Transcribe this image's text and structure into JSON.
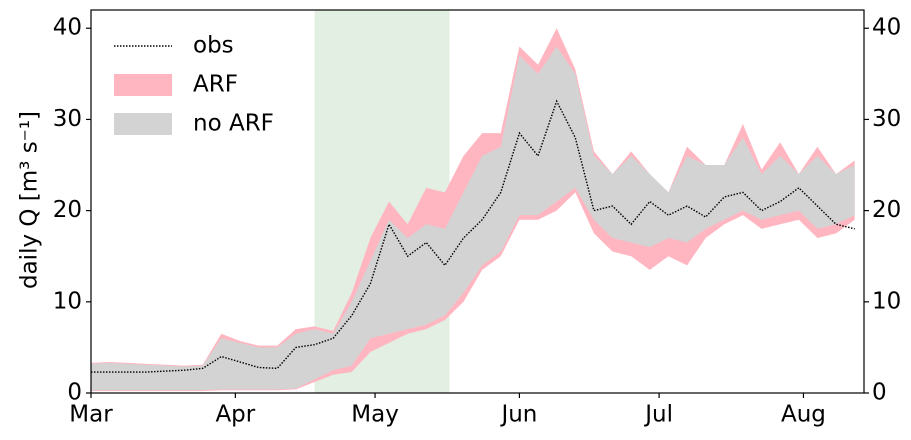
{
  "chart_data": {
    "type": "band-line",
    "ylabel": "daily Q [m³ s⁻¹]",
    "x": [
      0,
      4,
      8,
      12,
      16,
      20,
      24,
      28,
      32,
      36,
      40,
      44,
      48,
      52,
      56,
      60,
      64,
      68,
      72,
      76,
      80,
      84,
      88,
      92,
      96,
      100,
      104,
      108,
      112,
      116,
      120,
      124,
      128,
      132,
      136,
      140,
      144,
      148,
      152,
      156,
      160,
      164
    ],
    "xlim": [
      0,
      166
    ],
    "xticks": [
      {
        "value": 0,
        "label": "Mar"
      },
      {
        "value": 31,
        "label": "Apr"
      },
      {
        "value": 61,
        "label": "May"
      },
      {
        "value": 92,
        "label": "Jun"
      },
      {
        "value": 122,
        "label": "Jul"
      },
      {
        "value": 153,
        "label": "Aug"
      }
    ],
    "ylim": [
      0,
      42
    ],
    "yticks": [
      0,
      10,
      20,
      30,
      40
    ],
    "y2lim": [
      0,
      42
    ],
    "y2ticks": [
      0,
      10,
      20,
      30,
      40
    ],
    "shade": [
      48,
      77
    ],
    "shade_color": "#e3efe3",
    "legend": "upper left",
    "series": [
      {
        "name": "ARF",
        "color": "#ffb6c1",
        "low": [
          0.2,
          0.2,
          0.2,
          0.2,
          0.2,
          0.2,
          0.2,
          0.3,
          0.3,
          0.3,
          0.3,
          0.4,
          1.2,
          2.0,
          2.3,
          4.5,
          5.5,
          6.5,
          7.0,
          8.0,
          10.0,
          13.5,
          15.0,
          19.0,
          19.0,
          20.0,
          22.0,
          17.5,
          15.5,
          15.0,
          13.5,
          15.0,
          14.0,
          17.0,
          18.5,
          19.5,
          18.0,
          18.5,
          19.0,
          17.0,
          17.5,
          19.0
        ],
        "high": [
          3.3,
          3.4,
          3.3,
          3.2,
          3.1,
          3.0,
          3.1,
          6.5,
          5.7,
          5.2,
          5.2,
          7.0,
          7.3,
          6.8,
          11.0,
          17.0,
          21.0,
          18.5,
          22.5,
          22.0,
          26.0,
          28.5,
          28.5,
          38.0,
          36.0,
          40.0,
          35.5,
          26.5,
          24.0,
          26.5,
          24.0,
          22.0,
          27.0,
          25.0,
          25.0,
          29.5,
          24.5,
          27.5,
          24.0,
          27.0,
          24.0,
          25.5
        ]
      },
      {
        "name": "no ARF",
        "color": "#d3d3d3",
        "low": [
          0.3,
          0.3,
          0.3,
          0.3,
          0.3,
          0.3,
          0.3,
          0.4,
          0.4,
          0.4,
          0.4,
          0.5,
          1.5,
          2.5,
          3.0,
          6.0,
          6.5,
          7.0,
          7.5,
          8.5,
          11.0,
          14.0,
          15.5,
          19.5,
          19.5,
          21.0,
          22.5,
          19.0,
          17.0,
          16.5,
          16.0,
          17.0,
          16.5,
          18.0,
          19.0,
          20.0,
          19.0,
          19.5,
          20.0,
          18.0,
          18.5,
          19.5
        ],
        "high": [
          3.2,
          3.3,
          3.2,
          3.1,
          3.0,
          2.9,
          3.0,
          6.0,
          5.5,
          5.0,
          5.0,
          6.5,
          7.0,
          6.5,
          10.0,
          14.5,
          19.0,
          17.0,
          18.5,
          18.0,
          22.0,
          26.0,
          27.0,
          37.0,
          35.0,
          38.0,
          35.0,
          26.0,
          24.0,
          26.0,
          24.0,
          22.0,
          26.0,
          25.0,
          25.0,
          28.0,
          24.0,
          26.0,
          24.0,
          26.0,
          24.0,
          25.0
        ]
      },
      {
        "name": "obs",
        "color": "#000000",
        "values": [
          2.3,
          2.3,
          2.3,
          2.3,
          2.4,
          2.5,
          2.7,
          4.0,
          3.4,
          2.8,
          2.7,
          5.0,
          5.3,
          6.0,
          8.5,
          12.0,
          18.5,
          15.0,
          16.5,
          14.0,
          17.0,
          19.0,
          22.0,
          28.5,
          26.0,
          32.0,
          28.0,
          20.0,
          20.5,
          18.5,
          21.0,
          19.5,
          20.5,
          19.3,
          21.5,
          22.0,
          20.0,
          21.0,
          22.5,
          20.5,
          18.5,
          18.0
        ]
      }
    ]
  }
}
